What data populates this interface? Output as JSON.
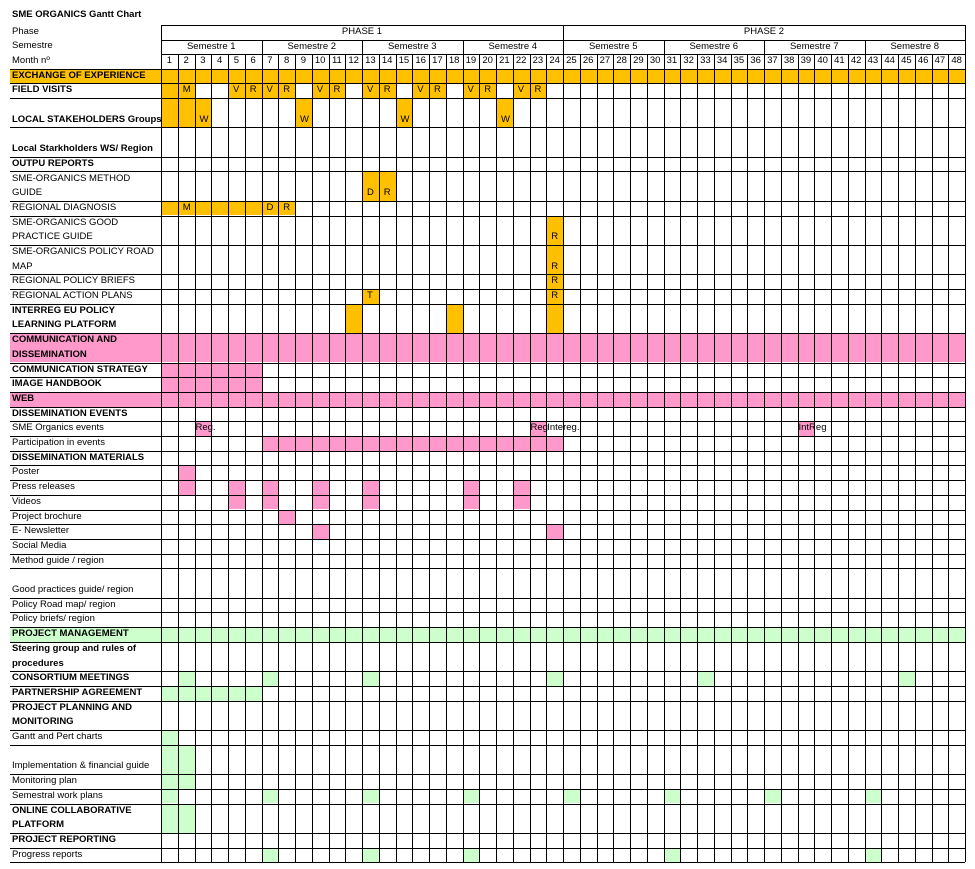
{
  "title": "SME ORGANICS Gantt Chart",
  "header_labels": {
    "phase": "Phase",
    "semestre": "Semestre",
    "month": "Month nº"
  },
  "phases": [
    "PHASE 1",
    "PHASE 2"
  ],
  "semesters": [
    "Semestre 1",
    "Semestre 2",
    "Semestre 3",
    "Semestre 4",
    "Semestre 5",
    "Semestre 6",
    "Semestre 7",
    "Semestre 8"
  ],
  "months": [
    "1",
    "2",
    "3",
    "4",
    "5",
    "6",
    "7",
    "8",
    "9",
    "10",
    "11",
    "12",
    "13",
    "14",
    "15",
    "16",
    "17",
    "18",
    "19",
    "20",
    "21",
    "22",
    "23",
    "24",
    "25",
    "26",
    "27",
    "28",
    "29",
    "30",
    "31",
    "32",
    "33",
    "34",
    "35",
    "36",
    "37",
    "38",
    "39",
    "40",
    "41",
    "42",
    "43",
    "44",
    "45",
    "46",
    "47",
    "48"
  ],
  "colors": {
    "yellow": "#ffc000",
    "pink": "#ff99cc",
    "green": "#ccffcc",
    "grid": "#000000"
  },
  "rows": [
    {
      "label": "EXCHANGE OF EXPERIENCE",
      "bold": true,
      "fill": "yellow",
      "fill_label": true,
      "bars": [
        [
          1,
          24
        ]
      ],
      "marks": []
    },
    {
      "label": "FIELD VISITS",
      "bold": true,
      "bars": [
        [
          1,
          2
        ],
        [
          5,
          8
        ],
        [
          10,
          11
        ],
        [
          13,
          14
        ],
        [
          16,
          17
        ],
        [
          19,
          20
        ],
        [
          22,
          23
        ]
      ],
      "color": "yellow",
      "marks": [
        [
          2,
          "M"
        ],
        [
          5,
          "V"
        ],
        [
          6,
          "R"
        ],
        [
          7,
          "V"
        ],
        [
          8,
          "R"
        ],
        [
          10,
          "V"
        ],
        [
          11,
          "R"
        ],
        [
          13,
          "V"
        ],
        [
          14,
          "R"
        ],
        [
          16,
          "V"
        ],
        [
          17,
          "R"
        ],
        [
          19,
          "V"
        ],
        [
          20,
          "R"
        ],
        [
          22,
          "V"
        ],
        [
          23,
          "R"
        ]
      ]
    },
    {
      "label": "LOCAL STAKEHOLDERS Groups",
      "bold": true,
      "tall": true,
      "bars": [
        [
          1,
          3
        ],
        [
          9,
          9
        ],
        [
          15,
          15
        ],
        [
          21,
          21
        ]
      ],
      "color": "yellow",
      "marks": [
        [
          3,
          "W"
        ],
        [
          9,
          "W"
        ],
        [
          15,
          "W"
        ],
        [
          21,
          "W"
        ]
      ]
    },
    {
      "label": "Local Starkholders WS/ Region",
      "bold": true,
      "tall": true,
      "bars": [],
      "marks": []
    },
    {
      "label": "OUTPU REPORTS",
      "bold": true,
      "bars": [],
      "marks": []
    },
    {
      "label": "SME-ORGANICS METHOD GUIDE",
      "bold": false,
      "tall": true,
      "bars": [
        [
          13,
          14
        ]
      ],
      "color": "yellow",
      "marks": [
        [
          13,
          "D"
        ],
        [
          14,
          "R"
        ]
      ]
    },
    {
      "label": "REGIONAL DIAGNOSIS",
      "bold": false,
      "bars": [
        [
          1,
          8
        ]
      ],
      "color": "yellow",
      "marks": [
        [
          2,
          "M"
        ],
        [
          7,
          "D"
        ],
        [
          8,
          "R"
        ]
      ]
    },
    {
      "label": "SME-ORGANICS GOOD PRACTICE GUIDE",
      "bold": false,
      "tall": true,
      "bars": [
        [
          24,
          24
        ]
      ],
      "color": "yellow",
      "marks": [
        [
          24,
          "R"
        ]
      ]
    },
    {
      "label": "SME-ORGANICS POLICY ROAD MAP",
      "bold": false,
      "tall": true,
      "bars": [
        [
          24,
          24
        ]
      ],
      "color": "yellow",
      "marks": [
        [
          24,
          "R"
        ]
      ]
    },
    {
      "label": "REGIONAL POLICY BRIEFS",
      "bold": false,
      "bars": [
        [
          24,
          24
        ]
      ],
      "color": "yellow",
      "marks": [
        [
          24,
          "R"
        ]
      ]
    },
    {
      "label": "REGIONAL ACTION PLANS",
      "bold": false,
      "bars": [
        [
          13,
          13
        ],
        [
          24,
          24
        ]
      ],
      "color": "yellow",
      "marks": [
        [
          13,
          "T"
        ],
        [
          24,
          "R"
        ]
      ]
    },
    {
      "label": "INTERREG EU POLICY LEARNING PLATFORM",
      "bold": true,
      "tall": true,
      "bars": [
        [
          12,
          12
        ],
        [
          18,
          18
        ],
        [
          24,
          24
        ]
      ],
      "color": "yellow",
      "marks": []
    },
    {
      "label": "COMMUNICATION AND DISSEMINATION",
      "bold": true,
      "fill": "pink",
      "fill_label": true,
      "tall": true,
      "bars": [
        [
          1,
          48
        ]
      ],
      "marks": []
    },
    {
      "label": "COMMUNICATION STRATEGY",
      "bold": true,
      "bars": [
        [
          1,
          6
        ]
      ],
      "color": "pink",
      "marks": []
    },
    {
      "label": "IMAGE HANDBOOK",
      "bold": true,
      "bars": [
        [
          1,
          6
        ]
      ],
      "color": "pink",
      "marks": []
    },
    {
      "label": "WEB",
      "bold": true,
      "fill": "pink",
      "fill_label": true,
      "bars": [
        [
          1,
          48
        ]
      ],
      "marks": []
    },
    {
      "label": "DISSEMINATION EVENTS",
      "bold": true,
      "bars": [],
      "marks": []
    },
    {
      "label": "SME Organics events",
      "bold": false,
      "bars": [
        [
          3,
          3
        ],
        [
          23,
          23
        ],
        [
          39,
          39
        ]
      ],
      "color": "pink",
      "marks": [
        [
          3,
          "Reg."
        ],
        [
          23,
          "Reg"
        ],
        [
          24,
          "Intereg."
        ],
        [
          39,
          "IntReg"
        ]
      ]
    },
    {
      "label": "Participation in events",
      "bold": false,
      "bars": [
        [
          7,
          24
        ]
      ],
      "color": "pink",
      "marks": []
    },
    {
      "label": "DISSEMINATION MATERIALS",
      "bold": true,
      "bars": [],
      "marks": []
    },
    {
      "label": "Poster",
      "bold": false,
      "bars": [
        [
          2,
          2
        ]
      ],
      "color": "pink",
      "marks": []
    },
    {
      "label": "Press releases",
      "bold": false,
      "bars": [
        [
          2,
          2
        ],
        [
          5,
          5
        ],
        [
          7,
          7
        ],
        [
          10,
          10
        ],
        [
          13,
          13
        ],
        [
          19,
          19
        ],
        [
          22,
          22
        ]
      ],
      "color": "pink",
      "marks": []
    },
    {
      "label": "Videos",
      "bold": false,
      "bars": [
        [
          5,
          5
        ],
        [
          7,
          7
        ],
        [
          10,
          10
        ],
        [
          13,
          13
        ],
        [
          19,
          19
        ],
        [
          22,
          22
        ]
      ],
      "color": "pink",
      "marks": []
    },
    {
      "label": "Project brochure",
      "bold": false,
      "bars": [
        [
          8,
          8
        ]
      ],
      "color": "pink",
      "marks": []
    },
    {
      "label": "E- Newsletter",
      "bold": false,
      "bars": [
        [
          10,
          10
        ],
        [
          24,
          24
        ]
      ],
      "color": "pink",
      "marks": []
    },
    {
      "label": "Social Media",
      "bold": false,
      "bars": [],
      "marks": []
    },
    {
      "label": "Method guide / region",
      "bold": false,
      "bars": [],
      "marks": []
    },
    {
      "label": "Good practices guide/ region",
      "bold": false,
      "tall": true,
      "bars": [],
      "marks": []
    },
    {
      "label": "Policy Road map/ region",
      "bold": false,
      "bars": [],
      "marks": []
    },
    {
      "label": "Policy briefs/ region",
      "bold": false,
      "bars": [],
      "marks": []
    },
    {
      "label": "PROJECT MANAGEMENT",
      "bold": true,
      "fill": "green",
      "fill_label": true,
      "bars": [
        [
          1,
          48
        ]
      ],
      "marks": []
    },
    {
      "label": "Steering group and rules of procedures",
      "bold": true,
      "tall": true,
      "bars": [],
      "marks": []
    },
    {
      "label": "CONSORTIUM MEETINGS",
      "bold": true,
      "bars": [
        [
          2,
          2
        ],
        [
          7,
          7
        ],
        [
          13,
          13
        ],
        [
          24,
          24
        ],
        [
          33,
          33
        ],
        [
          45,
          45
        ]
      ],
      "color": "green",
      "marks": []
    },
    {
      "label": "PARTNERSHIP AGREEMENT",
      "bold": true,
      "bars": [
        [
          1,
          6
        ]
      ],
      "color": "green",
      "marks": []
    },
    {
      "label": "PROJECT PLANNING AND MONITORING",
      "bold": true,
      "tall": true,
      "bars": [],
      "marks": []
    },
    {
      "label": "Gantt and Pert charts",
      "bold": false,
      "bars": [
        [
          1,
          1
        ]
      ],
      "color": "green",
      "marks": []
    },
    {
      "label": "Implementation & financial guide",
      "bold": false,
      "tall": true,
      "bars": [
        [
          1,
          2
        ]
      ],
      "color": "green",
      "marks": []
    },
    {
      "label": "Monitoring plan",
      "bold": false,
      "bars": [
        [
          1,
          2
        ]
      ],
      "color": "green",
      "marks": []
    },
    {
      "label": "Semestral work plans",
      "bold": false,
      "bars": [
        [
          1,
          1
        ],
        [
          7,
          7
        ],
        [
          13,
          13
        ],
        [
          19,
          19
        ],
        [
          25,
          25
        ],
        [
          31,
          31
        ],
        [
          37,
          37
        ],
        [
          43,
          43
        ]
      ],
      "color": "green",
      "marks": []
    },
    {
      "label": "ONLINE COLLABORATIVE PLATFORM",
      "bold": true,
      "tall": true,
      "bars": [
        [
          1,
          2
        ]
      ],
      "color": "green",
      "marks": []
    },
    {
      "label": "PROJECT REPORTING",
      "bold": true,
      "bars": [],
      "marks": []
    },
    {
      "label": "Progress reports",
      "bold": false,
      "bars": [
        [
          7,
          7
        ],
        [
          13,
          13
        ],
        [
          19,
          19
        ],
        [
          31,
          31
        ],
        [
          43,
          43
        ]
      ],
      "color": "green",
      "marks": []
    }
  ]
}
